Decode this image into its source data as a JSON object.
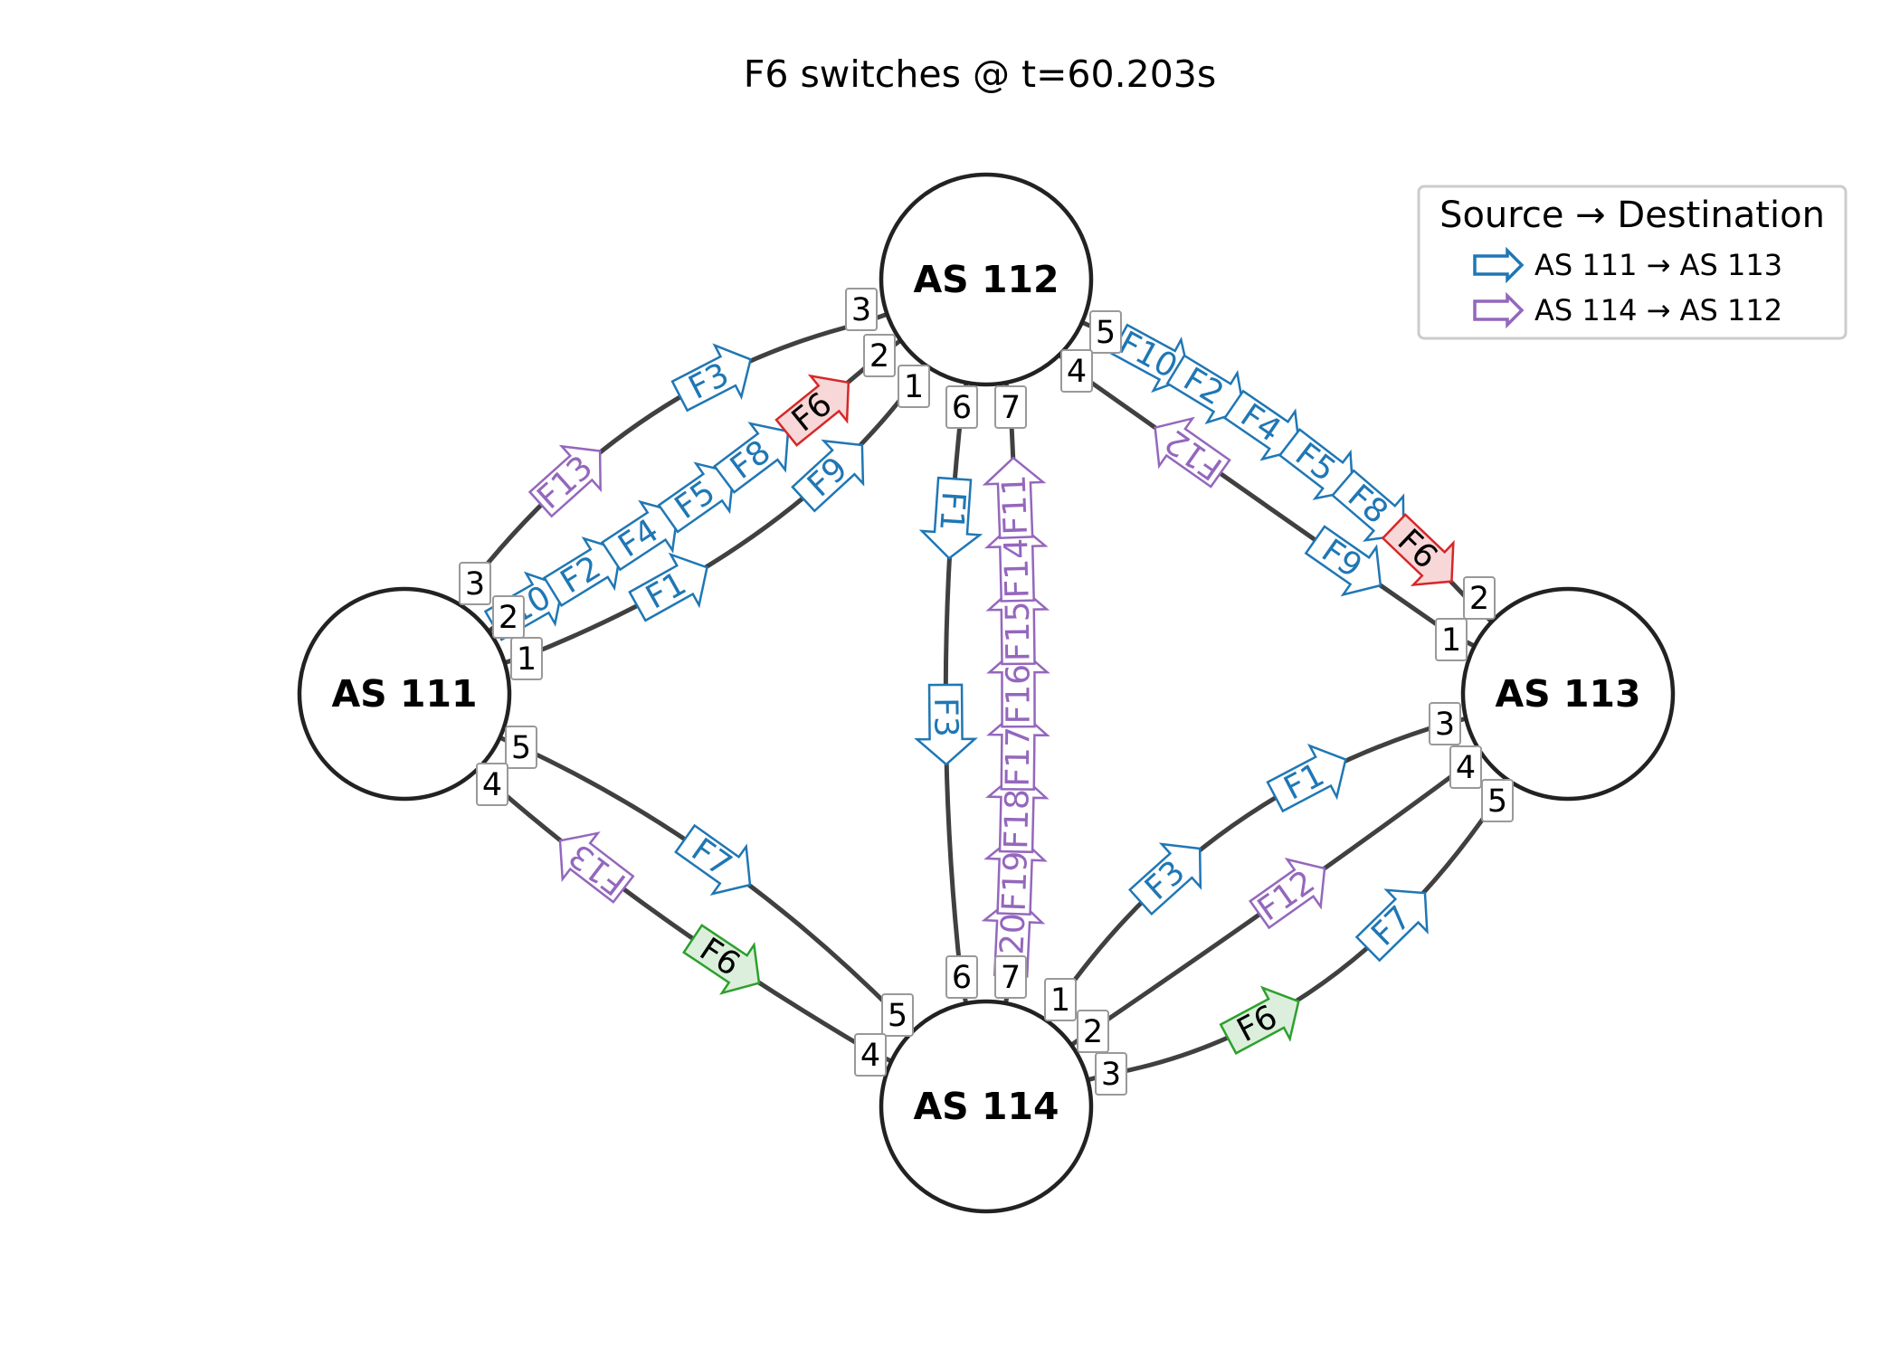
{
  "title": "F6 switches @ t=60.203s",
  "colors": {
    "blue": "#1f77b4",
    "purple": "#9467bd",
    "red": "#d62728",
    "green": "#2ca02c",
    "edge": "#404040"
  },
  "nodes": [
    {
      "id": "n111",
      "label": "AS 111"
    },
    {
      "id": "n112",
      "label": "AS 112"
    },
    {
      "id": "n113",
      "label": "AS 113"
    },
    {
      "id": "n114",
      "label": "AS 114"
    }
  ],
  "edges": [
    {
      "from": "n111",
      "to": "n112",
      "from_port": "3",
      "to_port": "3"
    },
    {
      "from": "n111",
      "to": "n112",
      "from_port": "2",
      "to_port": "2"
    },
    {
      "from": "n111",
      "to": "n112",
      "from_port": "1",
      "to_port": "1"
    },
    {
      "from": "n112",
      "to": "n113",
      "from_port": "5",
      "to_port": "2"
    },
    {
      "from": "n112",
      "to": "n113",
      "from_port": "4",
      "to_port": "1"
    },
    {
      "from": "n112",
      "to": "n114",
      "from_port": "6",
      "to_port": "6"
    },
    {
      "from": "n112",
      "to": "n114",
      "from_port": "7",
      "to_port": "7"
    },
    {
      "from": "n111",
      "to": "n114",
      "from_port": "5",
      "to_port": "5"
    },
    {
      "from": "n111",
      "to": "n114",
      "from_port": "4",
      "to_port": "4"
    },
    {
      "from": "n114",
      "to": "n113",
      "from_port": "1",
      "to_port": "3"
    },
    {
      "from": "n114",
      "to": "n113",
      "from_port": "2",
      "to_port": "4"
    },
    {
      "from": "n114",
      "to": "n113",
      "from_port": "3",
      "to_port": "5"
    }
  ],
  "flows": [
    {
      "label": "F13",
      "color": "purple",
      "dir": "forward"
    },
    {
      "label": "F3",
      "color": "blue",
      "dir": "forward"
    },
    {
      "label": "F10",
      "color": "blue",
      "dir": "forward"
    },
    {
      "label": "F2",
      "color": "blue",
      "dir": "forward"
    },
    {
      "label": "F4",
      "color": "blue",
      "dir": "forward"
    },
    {
      "label": "F5",
      "color": "blue",
      "dir": "forward"
    },
    {
      "label": "F8",
      "color": "blue",
      "dir": "forward"
    },
    {
      "label": "F6",
      "color": "red",
      "dir": "forward"
    },
    {
      "label": "F1",
      "color": "blue",
      "dir": "forward"
    },
    {
      "label": "F9",
      "color": "blue",
      "dir": "forward"
    },
    {
      "label": "F10",
      "color": "blue",
      "dir": "forward"
    },
    {
      "label": "F2",
      "color": "blue",
      "dir": "forward"
    },
    {
      "label": "F4",
      "color": "blue",
      "dir": "forward"
    },
    {
      "label": "F5",
      "color": "blue",
      "dir": "forward"
    },
    {
      "label": "F8",
      "color": "blue",
      "dir": "forward"
    },
    {
      "label": "F6",
      "color": "red",
      "dir": "forward"
    },
    {
      "label": "F12",
      "color": "purple",
      "dir": "reverse"
    },
    {
      "label": "F9",
      "color": "blue",
      "dir": "forward"
    },
    {
      "label": "F1",
      "color": "blue",
      "dir": "forward"
    },
    {
      "label": "F3",
      "color": "blue",
      "dir": "forward"
    },
    {
      "label": "F20",
      "color": "purple",
      "dir": "reverse"
    },
    {
      "label": "F19",
      "color": "purple",
      "dir": "reverse"
    },
    {
      "label": "F18",
      "color": "purple",
      "dir": "reverse"
    },
    {
      "label": "F17",
      "color": "purple",
      "dir": "reverse"
    },
    {
      "label": "F16",
      "color": "purple",
      "dir": "reverse"
    },
    {
      "label": "F15",
      "color": "purple",
      "dir": "reverse"
    },
    {
      "label": "F14",
      "color": "purple",
      "dir": "reverse"
    },
    {
      "label": "F11",
      "color": "purple",
      "dir": "reverse"
    },
    {
      "label": "F7",
      "color": "blue",
      "dir": "forward"
    },
    {
      "label": "F13",
      "color": "purple",
      "dir": "reverse"
    },
    {
      "label": "F6",
      "color": "green",
      "dir": "forward"
    },
    {
      "label": "F1",
      "color": "blue",
      "dir": "forward"
    },
    {
      "label": "F3",
      "color": "blue",
      "dir": "forward"
    },
    {
      "label": "F12",
      "color": "purple",
      "dir": "forward"
    },
    {
      "label": "F6",
      "color": "green",
      "dir": "forward"
    },
    {
      "label": "F7",
      "color": "blue",
      "dir": "forward"
    }
  ],
  "legend": {
    "title": "Source → Destination",
    "items": [
      {
        "label": "AS 111 → AS 113",
        "color": "blue"
      },
      {
        "label": "AS 114 → AS 112",
        "color": "purple"
      }
    ]
  }
}
